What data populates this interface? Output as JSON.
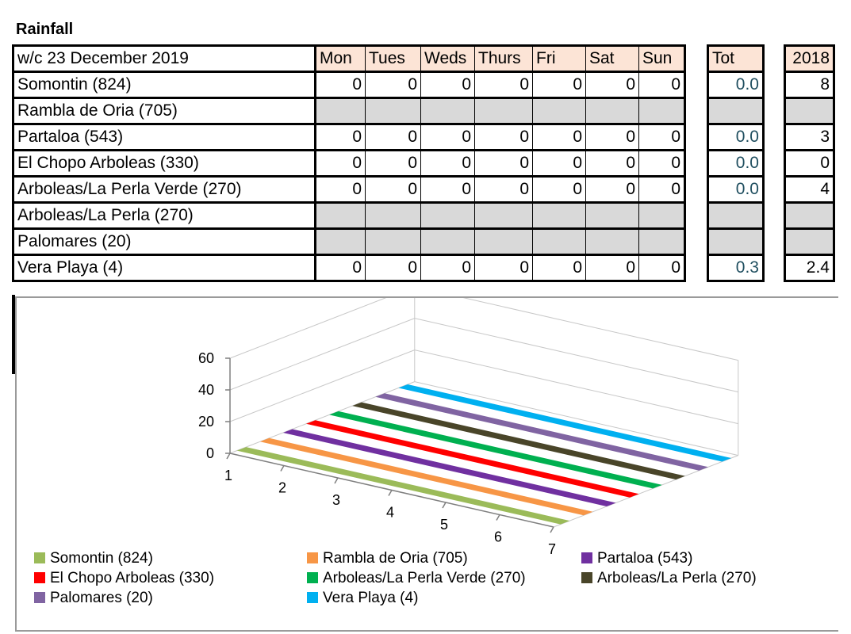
{
  "title": "Rainfall",
  "week_label": "w/c 23 December 2019",
  "days": [
    "Mon",
    "Tues",
    "Weds",
    "Thurs",
    "Fri",
    "Sat",
    "Sun"
  ],
  "tot_header": "Tot",
  "year_header": "2018",
  "stations": [
    {
      "name": "Somontin (824)",
      "values": [
        "0",
        "0",
        "0",
        "0",
        "0",
        "0",
        "0"
      ],
      "tot": "0.0",
      "y2018": "8",
      "no_data": false
    },
    {
      "name": "Rambla de Oria (705)",
      "values": [
        "",
        "",
        "",
        "",
        "",
        "",
        ""
      ],
      "tot": "",
      "y2018": "",
      "no_data": true
    },
    {
      "name": "Partaloa (543)",
      "values": [
        "0",
        "0",
        "0",
        "0",
        "0",
        "0",
        "0"
      ],
      "tot": "0.0",
      "y2018": "3",
      "no_data": false
    },
    {
      "name": "El Chopo Arboleas (330)",
      "values": [
        "0",
        "0",
        "0",
        "0",
        "0",
        "0",
        "0"
      ],
      "tot": "0.0",
      "y2018": "0",
      "no_data": false
    },
    {
      "name": "Arboleas/La Perla Verde (270)",
      "values": [
        "0",
        "0",
        "0",
        "0",
        "0",
        "0",
        "0"
      ],
      "tot": "0.0",
      "y2018": "4",
      "no_data": false
    },
    {
      "name": "Arboleas/La Perla (270)",
      "values": [
        "",
        "",
        "",
        "",
        "",
        "",
        ""
      ],
      "tot": "",
      "y2018": "",
      "no_data": true
    },
    {
      "name": "Palomares (20)",
      "values": [
        "",
        "",
        "",
        "",
        "",
        "",
        ""
      ],
      "tot": "",
      "y2018": "",
      "no_data": true
    },
    {
      "name": "Vera Playa (4)",
      "values": [
        "0",
        "0",
        "0",
        "0",
        "0",
        "0",
        "0"
      ],
      "tot": "0.3",
      "y2018": "2.4",
      "no_data": false
    }
  ],
  "chart_data": {
    "type": "area",
    "three_d": true,
    "x": [
      "1",
      "2",
      "3",
      "4",
      "5",
      "6",
      "7"
    ],
    "y_ticks": [
      "0",
      "20",
      "40",
      "60"
    ],
    "ylim": [
      0,
      60
    ],
    "series": [
      {
        "name": "Somontin (824)",
        "color": "#9bbb59",
        "values": [
          0,
          0,
          0,
          0,
          0,
          0,
          0
        ]
      },
      {
        "name": "Rambla de Oria (705)",
        "color": "#f79646",
        "values": [
          0,
          0,
          0,
          0,
          0,
          0,
          0
        ]
      },
      {
        "name": "Partaloa (543)",
        "color": "#7030a0",
        "values": [
          0,
          0,
          0,
          0,
          0,
          0,
          0
        ]
      },
      {
        "name": "El Chopo Arboleas (330)",
        "color": "#ff0000",
        "values": [
          0,
          0,
          0,
          0,
          0,
          0,
          0
        ]
      },
      {
        "name": "Arboleas/La Perla Verde (270)",
        "color": "#00b050",
        "values": [
          0,
          0,
          0,
          0,
          0,
          0,
          0
        ]
      },
      {
        "name": "Arboleas/La Perla (270)",
        "color": "#494529",
        "values": [
          0,
          0,
          0,
          0,
          0,
          0,
          0
        ]
      },
      {
        "name": "Palomares (20)",
        "color": "#8064a2",
        "values": [
          0,
          0,
          0,
          0,
          0,
          0,
          0
        ]
      },
      {
        "name": "Vera Playa (4)",
        "color": "#00b0f0",
        "values": [
          0,
          0,
          0,
          0,
          0,
          0,
          0
        ]
      }
    ],
    "legend_position": "bottom"
  }
}
